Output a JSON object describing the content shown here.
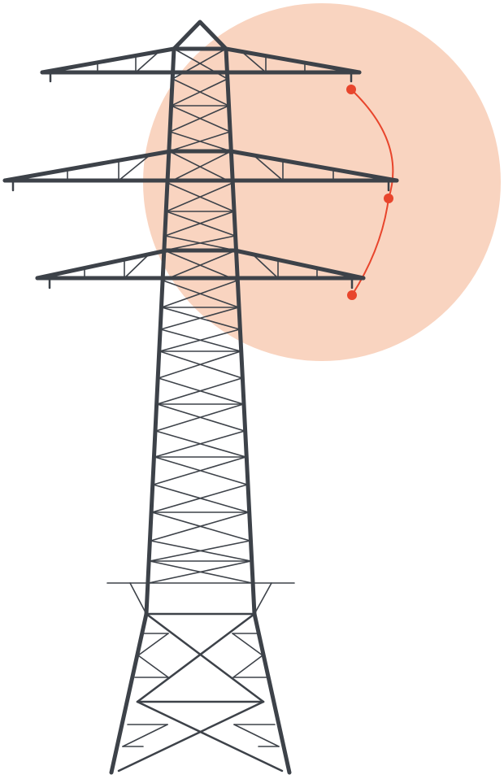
{
  "colors": {
    "steel": "#3d4249",
    "sun_circle": "#f9d4c0",
    "conductor": "#e8452c",
    "background": "#ffffff"
  },
  "illustration": {
    "subject": "transmission-tower-icon",
    "sun": "circle-icon",
    "insulator_points": "dot-icon"
  }
}
